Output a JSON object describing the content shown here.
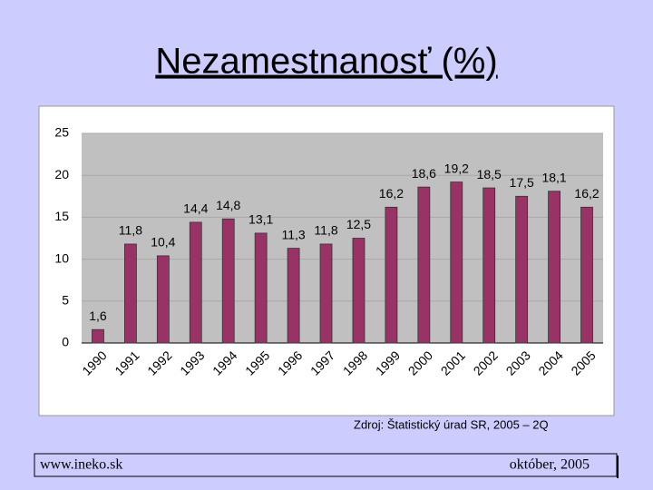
{
  "chart_data": {
    "type": "bar",
    "title": "Nezamestnanosť (%)",
    "categories": [
      "1990",
      "1991",
      "1992",
      "1993",
      "1994",
      "1995",
      "1996",
      "1997",
      "1998",
      "1999",
      "2000",
      "2001",
      "2002",
      "2003",
      "2004",
      "2005"
    ],
    "values": [
      1.6,
      11.8,
      10.4,
      14.4,
      14.8,
      13.1,
      11.3,
      11.8,
      12.5,
      16.2,
      18.6,
      19.2,
      18.5,
      17.5,
      18.1,
      16.2
    ],
    "value_labels": [
      "1,6",
      "11,8",
      "10,4",
      "14,4",
      "14,8",
      "13,1",
      "11,3",
      "11,8",
      "12,5",
      "16,2",
      "18,6",
      "19,2",
      "18,5",
      "17,5",
      "18,1",
      "16,2"
    ],
    "color": "#993366",
    "ylim": [
      0,
      25
    ],
    "yticks": [
      0,
      5,
      10,
      15,
      20,
      25
    ],
    "grid": true,
    "source": "Zdroj: Štatistický úrad SR, 2005 – 2Q"
  },
  "footer": {
    "left": "www.ineko.sk",
    "right": "október, 2005"
  }
}
